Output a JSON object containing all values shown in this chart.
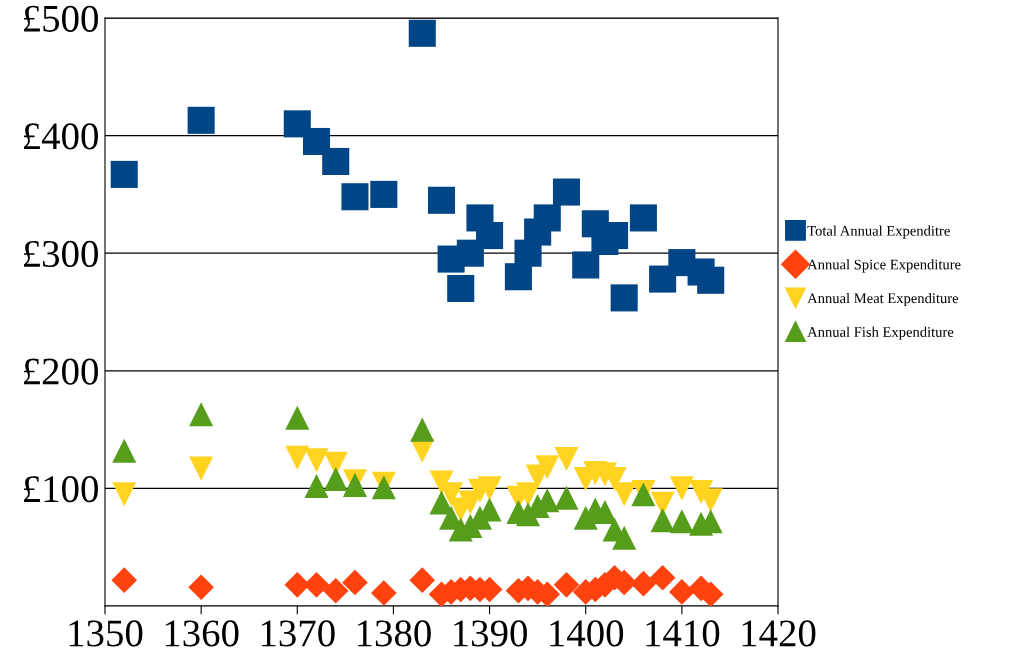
{
  "chart_data": {
    "type": "scatter",
    "x": [
      1352,
      1360,
      1370,
      1372,
      1374,
      1376,
      1379,
      1383,
      1385,
      1386,
      1387,
      1388,
      1389,
      1390,
      1393,
      1394,
      1395,
      1396,
      1398,
      1400,
      1401,
      1402,
      1403,
      1404,
      1406,
      1408,
      1410,
      1412,
      1413
    ],
    "series": [
      {
        "name": "Total Annual Expenditre",
        "color": "#004586",
        "marker": "square",
        "values": [
          367,
          413,
          410,
          395,
          378,
          348,
          350,
          487,
          345,
          295,
          270,
          300,
          330,
          315,
          280,
          300,
          318,
          330,
          352,
          290,
          325,
          310,
          315,
          262,
          330,
          278,
          292,
          284,
          277
        ]
      },
      {
        "name": "Annual Spice Expenditure",
        "color": "#ff420e",
        "marker": "diamond",
        "values": [
          22,
          16,
          18,
          18,
          13,
          20,
          11,
          22,
          10,
          12,
          14,
          15,
          14,
          14,
          13,
          15,
          12,
          10,
          18,
          12,
          14,
          18,
          24,
          20,
          19,
          24,
          12,
          15,
          10
        ]
      },
      {
        "name": "Annual Meat Expenditure",
        "color": "#ffd320",
        "marker": "triangle_down",
        "values": [
          95,
          117,
          126,
          124,
          121,
          106,
          104,
          132,
          105,
          95,
          82,
          88,
          98,
          100,
          92,
          95,
          110,
          118,
          125,
          108,
          113,
          112,
          108,
          95,
          97,
          87,
          100,
          97,
          90
        ]
      },
      {
        "name": "Annual Fish Expenditure",
        "color": "#579d1c",
        "marker": "triangle",
        "values": [
          132,
          163,
          160,
          102,
          108,
          103,
          101,
          150,
          88,
          75,
          65,
          68,
          75,
          82,
          80,
          78,
          85,
          90,
          92,
          75,
          82,
          80,
          65,
          58,
          95,
          73,
          72,
          70,
          72
        ]
      }
    ],
    "xlim": [
      1350,
      1420
    ],
    "xticks": [
      1350,
      1360,
      1370,
      1380,
      1390,
      1400,
      1410,
      1420
    ],
    "ylim": [
      0,
      500
    ],
    "yticks": [
      {
        "value": 0,
        "label": null
      },
      {
        "value": 100,
        "label": "£100"
      },
      {
        "value": 200,
        "label": "£200"
      },
      {
        "value": 300,
        "label": "£300"
      },
      {
        "value": 400,
        "label": "£400"
      },
      {
        "value": 500,
        "label": "£500"
      }
    ],
    "grid": "y",
    "legend": "right"
  }
}
